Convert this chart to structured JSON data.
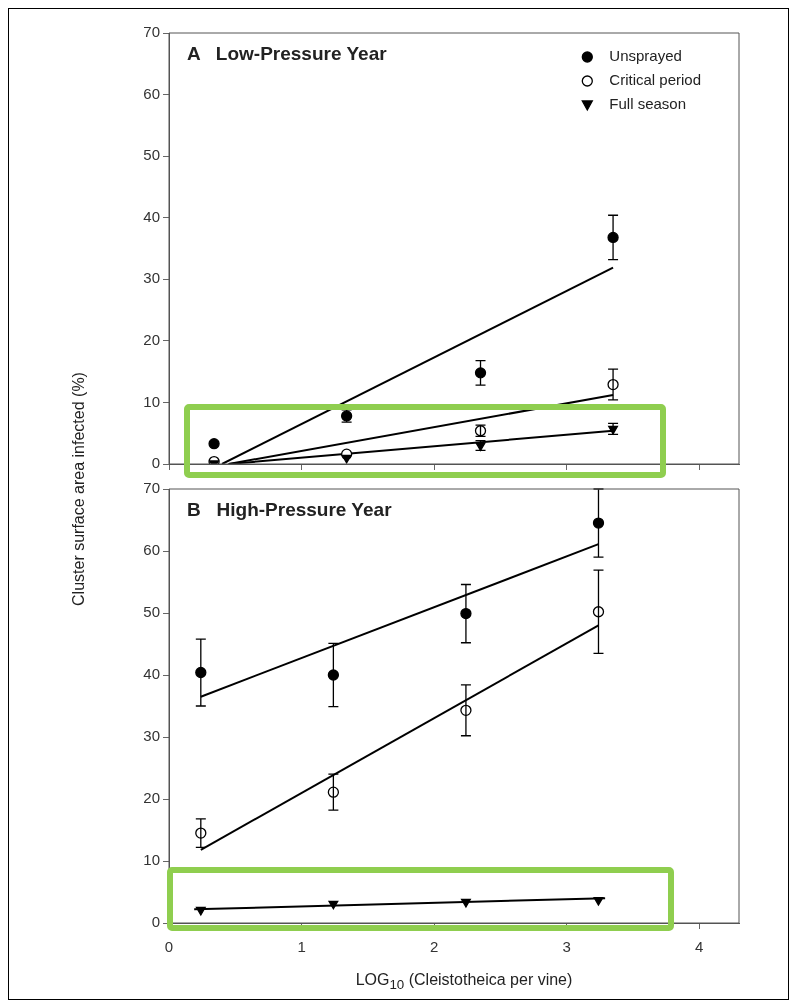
{
  "chart_data": [
    {
      "type": "scatter",
      "title": "A   Low-Pressure Year",
      "ylabel": "Cluster surface area infected (%)",
      "xlim": [
        0,
        4.3
      ],
      "xticks": [
        0,
        1,
        2,
        3,
        4
      ],
      "ylim": [
        0,
        70
      ],
      "yticks": [
        0,
        10,
        20,
        30,
        40,
        50,
        60,
        70
      ],
      "tick_labels": "y",
      "legend": "top right",
      "grid": false,
      "series": [
        {
          "name": "Unsprayed",
          "color": "#000000",
          "marker": "circle",
          "x": [
            0.34,
            1.34,
            2.35,
            3.35
          ],
          "values": [
            3.3,
            7.8,
            14.8,
            36.8
          ],
          "errors": [
            null,
            1,
            2,
            3.6
          ]
        },
        {
          "name": "Critical period",
          "color": "#ffffff",
          "marker": "circle",
          "x": [
            0.34,
            1.34,
            2.35,
            3.35
          ],
          "values": [
            0.4,
            1.6,
            5.4,
            12.9
          ],
          "errors": [
            null,
            null,
            0.9,
            2.5
          ]
        },
        {
          "name": "Full season",
          "color": "#000000",
          "marker": "triangle",
          "x": [
            0.34,
            1.34,
            2.35,
            3.35
          ],
          "values": [
            0.1,
            1.0,
            3.0,
            5.7
          ],
          "errors": [
            null,
            null,
            0.8,
            0.9
          ]
        },
        {
          "type": "line",
          "color": "#000000",
          "x": [
            0.4,
            3.35
          ],
          "values": [
            0,
            31.9
          ]
        },
        {
          "type": "line",
          "color": "#000000",
          "x": [
            0.45,
            3.35
          ],
          "values": [
            0,
            11.2
          ]
        },
        {
          "type": "line",
          "color": "#000000",
          "x": [
            0.45,
            3.35
          ],
          "values": [
            0,
            5.4
          ]
        }
      ]
    },
    {
      "type": "scatter",
      "title": "B   High-Pressure Year",
      "xlabel": "LOG$_{10}$ (Cleistotheica per vine)",
      "xlim": [
        0,
        4.3
      ],
      "xticks": [
        0,
        1,
        2,
        3,
        4
      ],
      "ylim": [
        0,
        70
      ],
      "yticks": [
        0,
        10,
        20,
        30,
        40,
        50,
        60,
        70
      ],
      "grid": false,
      "series": [
        {
          "color": "#000000",
          "marker": "circle",
          "x": [
            0.24,
            1.24,
            2.24,
            3.24
          ],
          "values": [
            40.4,
            40.0,
            49.9,
            64.5
          ],
          "errors": [
            5.4,
            5.1,
            4.7,
            5.5
          ]
        },
        {
          "color": "#ffffff",
          "marker": "circle",
          "x": [
            0.24,
            1.24,
            2.24,
            3.24
          ],
          "values": [
            14.5,
            21.1,
            34.3,
            50.2
          ],
          "errors": [
            2.3,
            2.9,
            4.1,
            6.7
          ]
        },
        {
          "color": "#000000",
          "marker": "triangle",
          "x": [
            0.24,
            1.24,
            2.24,
            3.24
          ],
          "values": [
            2.1,
            3.1,
            3.4,
            3.7
          ]
        },
        {
          "type": "line",
          "color": "#000000",
          "x": [
            0.24,
            3.24
          ],
          "values": [
            36.5,
            61.1
          ]
        },
        {
          "type": "line",
          "color": "#000000",
          "x": [
            0.24,
            3.24
          ],
          "values": [
            11.8,
            48.0
          ]
        },
        {
          "type": "line",
          "color": "#000000",
          "x": [
            0.19,
            3.29
          ],
          "values": [
            2.2,
            4.0
          ]
        }
      ]
    }
  ]
}
